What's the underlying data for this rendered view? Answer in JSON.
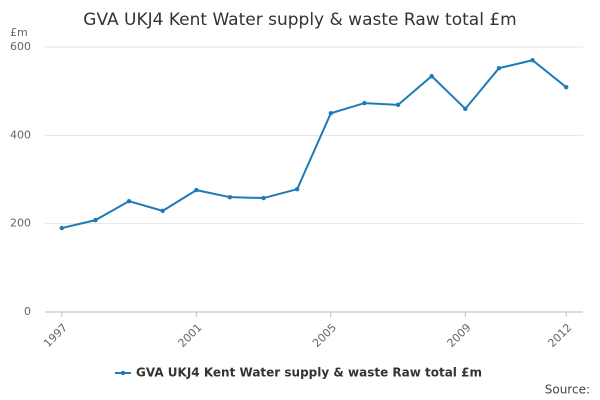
{
  "chart_data": {
    "type": "line",
    "title": "GVA UKJ4 Kent Water supply & waste Raw total £m",
    "y_label": "£m",
    "source": "Source:",
    "x": [
      1997,
      1998,
      1999,
      2000,
      2001,
      2002,
      2003,
      2004,
      2005,
      2006,
      2007,
      2008,
      2009,
      2010,
      2011,
      2012
    ],
    "series": [
      {
        "name": "GVA UKJ4 Kent Water supply & waste Raw total £m",
        "color": "#1f7ab8",
        "values": [
          190,
          208,
          251,
          229,
          276,
          260,
          258,
          278,
          450,
          473,
          469,
          534,
          460,
          552,
          570,
          509
        ]
      }
    ],
    "xlim": [
      1996.5,
      2012.5
    ],
    "xticks": [
      1997,
      2001,
      2005,
      2009,
      2012
    ],
    "ylim": [
      0,
      600
    ],
    "yticks": [
      0,
      200,
      400,
      600
    ],
    "grid": true,
    "legend": "bottom"
  }
}
